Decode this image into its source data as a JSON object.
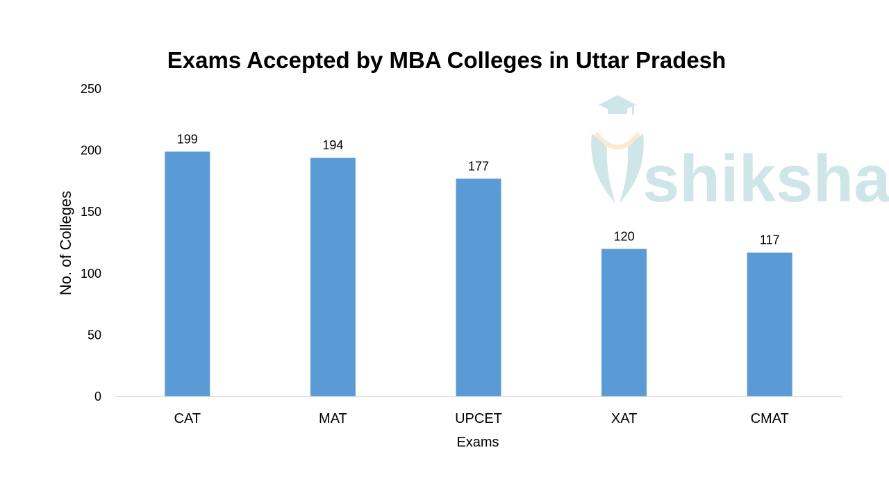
{
  "chart_data": {
    "type": "bar",
    "title": "Exams Accepted by MBA Colleges in Uttar Pradesh",
    "xlabel": "Exams",
    "ylabel": "No. of Colleges",
    "categories": [
      "CAT",
      "MAT",
      "UPCET",
      "XAT",
      "CMAT"
    ],
    "values": [
      199,
      194,
      177,
      120,
      117
    ],
    "data_labels": [
      "199",
      "194",
      "177",
      "120",
      "117"
    ],
    "ylim": [
      0,
      250
    ],
    "yticks": [
      0,
      50,
      100,
      150,
      200,
      250
    ],
    "ytick_labels": [
      "0",
      "50",
      "100",
      "150",
      "200",
      "250"
    ],
    "grid": false,
    "legend": "none",
    "bar_color": "#5B9BD5"
  },
  "watermark": {
    "text": "shiksha",
    "color": "#A9D3D6",
    "accent_color": "#F6D9A8"
  }
}
